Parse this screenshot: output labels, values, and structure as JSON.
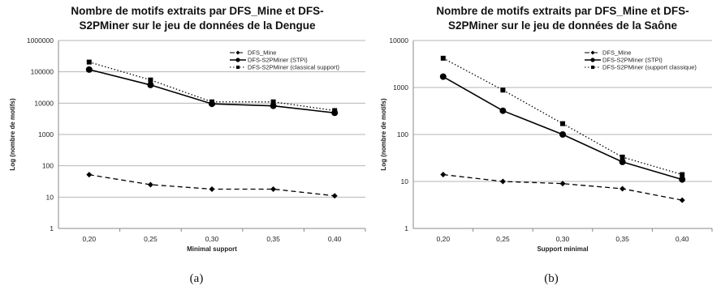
{
  "chart_data": [
    {
      "type": "line",
      "title_lines": [
        "Nombre de motifs extraits par DFS_Mine et DFS-",
        "S2PMiner sur le jeu de données de la Dengue"
      ],
      "xlabel": "Minimal support",
      "ylabel": "Log (nombre de motifs)",
      "y_scale": "log",
      "ylim": [
        1,
        1000000
      ],
      "y_ticks": [
        "1",
        "10",
        "100",
        "1000",
        "10000",
        "100000",
        "1000000"
      ],
      "categories": [
        "0,20",
        "0,25",
        "0,30",
        "0,35",
        "0,40"
      ],
      "grid": true,
      "legend_position": "top-right",
      "series": [
        {
          "name": "DFS_Mine",
          "style": "dashed",
          "marker": "diamond",
          "values": [
            52,
            25,
            18,
            18,
            11
          ]
        },
        {
          "name": "DFS-S2PMiner (STPi)",
          "style": "solid",
          "marker": "circle",
          "values": [
            118000,
            38000,
            9500,
            8200,
            4900
          ]
        },
        {
          "name": "DFS-S2PMiner (classical support)",
          "style": "dotted",
          "marker": "square",
          "values": [
            205000,
            55000,
            11000,
            11000,
            5800
          ]
        }
      ],
      "caption": "(a)"
    },
    {
      "type": "line",
      "title_lines": [
        "Nombre de motifs extraits par DFS_Mine et DFS-",
        "S2PMiner sur le jeu de données de la Saône"
      ],
      "xlabel": "Support minimal",
      "ylabel": "Log (nombre de motifs)",
      "y_scale": "log",
      "ylim": [
        1,
        10000
      ],
      "y_ticks": [
        "1",
        "10",
        "100",
        "1000",
        "10000"
      ],
      "categories": [
        "0,20",
        "0,25",
        "0,30",
        "0,35",
        "0,40"
      ],
      "grid": true,
      "legend_position": "top-right",
      "series": [
        {
          "name": "DFS_Mine",
          "style": "dashed",
          "marker": "diamond",
          "values": [
            14,
            10,
            9,
            7,
            4
          ]
        },
        {
          "name": "DFS-S2PMiner (STPi)",
          "style": "solid",
          "marker": "circle",
          "values": [
            1700,
            320,
            100,
            26,
            11
          ]
        },
        {
          "name": "DFS-S2PMiner (support classique)",
          "style": "dotted",
          "marker": "square",
          "values": [
            4200,
            880,
            170,
            33,
            14
          ]
        }
      ],
      "caption": "(b)"
    }
  ]
}
